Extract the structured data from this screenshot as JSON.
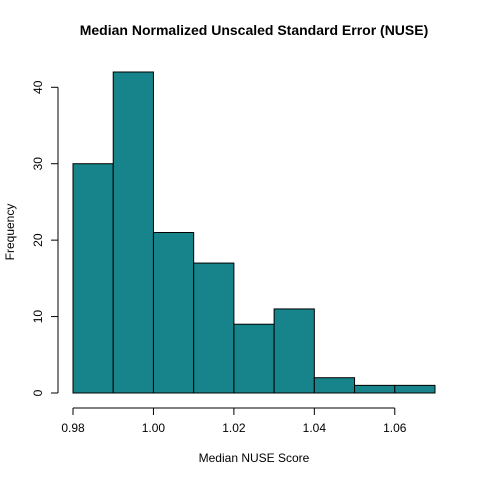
{
  "chart_data": {
    "type": "bar",
    "title": "Median Normalized Unscaled Standard Error (NUSE)",
    "xlabel": "Median NUSE Score",
    "ylabel": "Frequency",
    "bin_edges": [
      0.98,
      0.99,
      1.0,
      1.01,
      1.02,
      1.03,
      1.04,
      1.05,
      1.06,
      1.07
    ],
    "values": [
      30,
      42,
      21,
      17,
      9,
      11,
      2,
      1,
      1
    ],
    "xlim": [
      0.98,
      1.07
    ],
    "ylim": [
      0,
      42
    ],
    "x_ticks": [
      0.98,
      1.0,
      1.02,
      1.04,
      1.06
    ],
    "x_tick_labels": [
      "0.98",
      "1.00",
      "1.02",
      "1.04",
      "1.06"
    ],
    "y_ticks": [
      0,
      10,
      20,
      30,
      40
    ],
    "y_tick_labels": [
      "0",
      "10",
      "20",
      "30",
      "40"
    ],
    "bar_color": "#16848a",
    "grid": false
  }
}
